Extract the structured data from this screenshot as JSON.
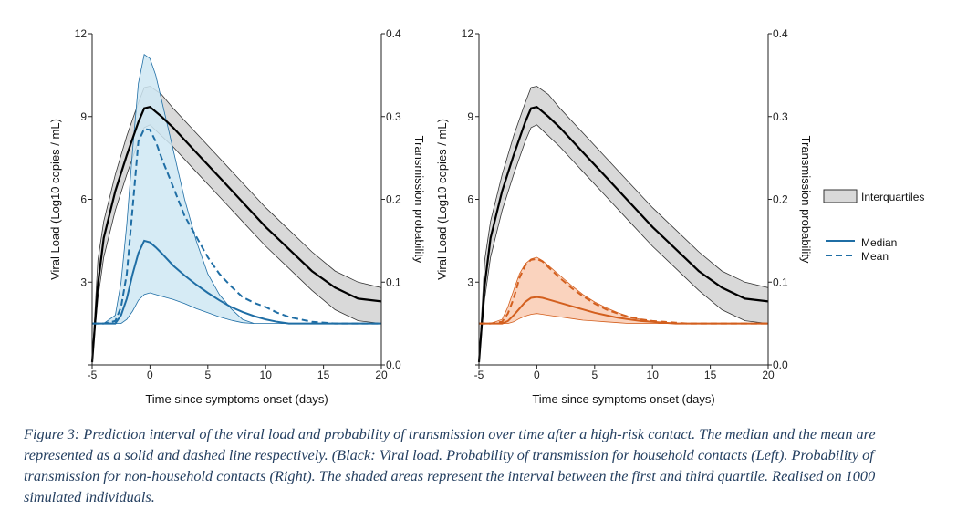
{
  "chart_data": [
    {
      "type": "line",
      "panel": "left",
      "xlabel": "Time since symptoms onset (days)",
      "ylabel": "Viral Load (Log10 copies / mL)",
      "y2label": "Transmission probability",
      "xlim": [
        -5,
        20
      ],
      "ylim": [
        0,
        12
      ],
      "y2lim": [
        0,
        0.4
      ],
      "xticks": [
        -5,
        0,
        5,
        10,
        15,
        20
      ],
      "yticks": [
        0,
        3,
        6,
        9,
        12
      ],
      "y2ticks": [
        "0.0",
        "0.1",
        "0.2",
        "0.3",
        "0.4"
      ],
      "yticklabels": [
        "3",
        "6",
        "9",
        "12"
      ],
      "grid": false,
      "viral_load": {
        "color": "#000000",
        "band_color": "#d9d9d9",
        "x": [
          -5,
          -4.5,
          -4,
          -3,
          -2,
          -1,
          -0.5,
          0,
          1,
          2,
          4,
          6,
          8,
          10,
          12,
          14,
          16,
          18,
          20
        ],
        "median": [
          0.1,
          2.9,
          4.6,
          6.3,
          7.6,
          8.8,
          9.3,
          9.35,
          9.0,
          8.6,
          7.7,
          6.8,
          5.9,
          5.0,
          4.2,
          3.4,
          2.8,
          2.4,
          2.3
        ],
        "q1": [
          0.1,
          2.4,
          3.9,
          5.6,
          6.9,
          8.1,
          8.6,
          8.7,
          8.3,
          7.9,
          7.0,
          6.1,
          5.2,
          4.3,
          3.5,
          2.7,
          2.0,
          1.6,
          1.5
        ],
        "q3": [
          0.1,
          3.8,
          5.2,
          6.9,
          8.3,
          9.5,
          10.05,
          10.1,
          9.8,
          9.3,
          8.4,
          7.5,
          6.6,
          5.7,
          4.9,
          4.1,
          3.4,
          3.0,
          2.8
        ]
      },
      "transmission": {
        "color": "#1f6ea5",
        "band_color": "#cfe8f3",
        "x": [
          -5,
          -4,
          -3,
          -2.5,
          -2,
          -1.5,
          -1,
          -0.5,
          0,
          0.5,
          1,
          2,
          3,
          4,
          5,
          6,
          7,
          8,
          9,
          10,
          11,
          12,
          13,
          14,
          16,
          18,
          20
        ],
        "median": [
          0.05,
          0.05,
          0.05,
          0.06,
          0.08,
          0.11,
          0.135,
          0.15,
          0.148,
          0.142,
          0.135,
          0.12,
          0.108,
          0.097,
          0.087,
          0.078,
          0.07,
          0.064,
          0.059,
          0.055,
          0.052,
          0.05,
          0.05,
          0.05,
          0.05,
          0.05,
          0.05
        ],
        "mean": [
          0.05,
          0.05,
          0.053,
          0.07,
          0.11,
          0.19,
          0.27,
          0.285,
          0.284,
          0.27,
          0.25,
          0.215,
          0.18,
          0.155,
          0.13,
          0.11,
          0.095,
          0.082,
          0.075,
          0.07,
          0.063,
          0.058,
          0.055,
          0.052,
          0.05,
          0.05,
          0.05
        ],
        "q1": [
          0.05,
          0.05,
          0.05,
          0.05,
          0.055,
          0.065,
          0.078,
          0.085,
          0.087,
          0.085,
          0.083,
          0.079,
          0.074,
          0.068,
          0.063,
          0.058,
          0.054,
          0.051,
          0.05,
          0.05,
          0.05,
          0.05,
          0.05,
          0.05,
          0.05,
          0.05,
          0.05
        ],
        "q3": [
          0.05,
          0.05,
          0.06,
          0.1,
          0.17,
          0.26,
          0.34,
          0.375,
          0.37,
          0.35,
          0.32,
          0.26,
          0.2,
          0.15,
          0.11,
          0.085,
          0.068,
          0.055,
          0.05,
          0.05,
          0.05,
          0.05,
          0.05,
          0.05,
          0.05,
          0.05,
          0.05
        ]
      }
    },
    {
      "type": "line",
      "panel": "right",
      "xlabel": "Time since symptoms onset (days)",
      "ylabel": "Viral Load (Log10 copies / mL)",
      "y2label": "Transmission probability",
      "xlim": [
        -5,
        20
      ],
      "ylim": [
        0,
        12
      ],
      "y2lim": [
        0,
        0.4
      ],
      "xticks": [
        -5,
        0,
        5,
        10,
        15,
        20
      ],
      "yticks": [
        0,
        3,
        6,
        9,
        12
      ],
      "y2ticks": [
        "0.0",
        "0.1",
        "0.2",
        "0.3",
        "0.4"
      ],
      "yticklabels": [
        "3",
        "6",
        "9",
        "12"
      ],
      "grid": false,
      "viral_load": {
        "color": "#000000",
        "band_color": "#d9d9d9",
        "x": [
          -5,
          -4.5,
          -4,
          -3,
          -2,
          -1,
          -0.5,
          0,
          1,
          2,
          4,
          6,
          8,
          10,
          12,
          14,
          16,
          18,
          20
        ],
        "median": [
          0.1,
          2.9,
          4.6,
          6.3,
          7.6,
          8.8,
          9.3,
          9.35,
          9.0,
          8.6,
          7.7,
          6.8,
          5.9,
          5.0,
          4.2,
          3.4,
          2.8,
          2.4,
          2.3
        ],
        "q1": [
          0.1,
          2.4,
          3.9,
          5.6,
          6.9,
          8.1,
          8.6,
          8.7,
          8.3,
          7.9,
          7.0,
          6.1,
          5.2,
          4.3,
          3.5,
          2.7,
          2.0,
          1.6,
          1.5
        ],
        "q3": [
          0.1,
          3.8,
          5.2,
          6.9,
          8.3,
          9.5,
          10.05,
          10.1,
          9.8,
          9.3,
          8.4,
          7.5,
          6.6,
          5.7,
          4.9,
          4.1,
          3.4,
          3.0,
          2.8
        ]
      },
      "transmission": {
        "color": "#d35f1e",
        "band_color": "#f9cbb3",
        "x": [
          -5,
          -4,
          -3,
          -2.5,
          -2,
          -1.5,
          -1,
          -0.5,
          0,
          0.5,
          1,
          2,
          3,
          4,
          5,
          6,
          7,
          8,
          9,
          10,
          11,
          12,
          13,
          14,
          16,
          18,
          20
        ],
        "median": [
          0.05,
          0.05,
          0.05,
          0.053,
          0.06,
          0.068,
          0.076,
          0.081,
          0.082,
          0.081,
          0.079,
          0.075,
          0.071,
          0.067,
          0.063,
          0.06,
          0.057,
          0.055,
          0.053,
          0.052,
          0.051,
          0.05,
          0.05,
          0.05,
          0.05,
          0.05,
          0.05
        ],
        "mean": [
          0.05,
          0.05,
          0.052,
          0.062,
          0.08,
          0.105,
          0.12,
          0.127,
          0.128,
          0.125,
          0.118,
          0.105,
          0.093,
          0.083,
          0.074,
          0.067,
          0.062,
          0.058,
          0.055,
          0.053,
          0.052,
          0.051,
          0.05,
          0.05,
          0.05,
          0.05,
          0.05
        ],
        "q1": [
          0.05,
          0.05,
          0.05,
          0.05,
          0.052,
          0.056,
          0.059,
          0.061,
          0.062,
          0.061,
          0.06,
          0.058,
          0.056,
          0.054,
          0.053,
          0.052,
          0.051,
          0.05,
          0.05,
          0.05,
          0.05,
          0.05,
          0.05,
          0.05,
          0.05,
          0.05,
          0.05
        ],
        "q3": [
          0.05,
          0.05,
          0.055,
          0.07,
          0.09,
          0.11,
          0.122,
          0.128,
          0.13,
          0.126,
          0.12,
          0.108,
          0.096,
          0.085,
          0.076,
          0.069,
          0.063,
          0.058,
          0.055,
          0.052,
          0.05,
          0.05,
          0.05,
          0.05,
          0.05,
          0.05,
          0.05
        ]
      }
    }
  ],
  "legend": {
    "placement": "right",
    "interquartiles_label": "Interquartiles",
    "median_label": "Median",
    "mean_label": "Mean",
    "band_color": "#d9d9d9",
    "line_color": "#1f6ea5"
  },
  "caption": "Figure 3: Prediction interval of the viral load and probability of transmission over time after a high-risk contact. The median and the mean are represented as a solid and dashed line respectively. (Black: Viral load. Probability of transmission for household contacts (Left).  Probability of transmission for non-household contacts (Right). The shaded areas represent the interval between the first and third quartile. Realised on 1000 simulated individuals."
}
